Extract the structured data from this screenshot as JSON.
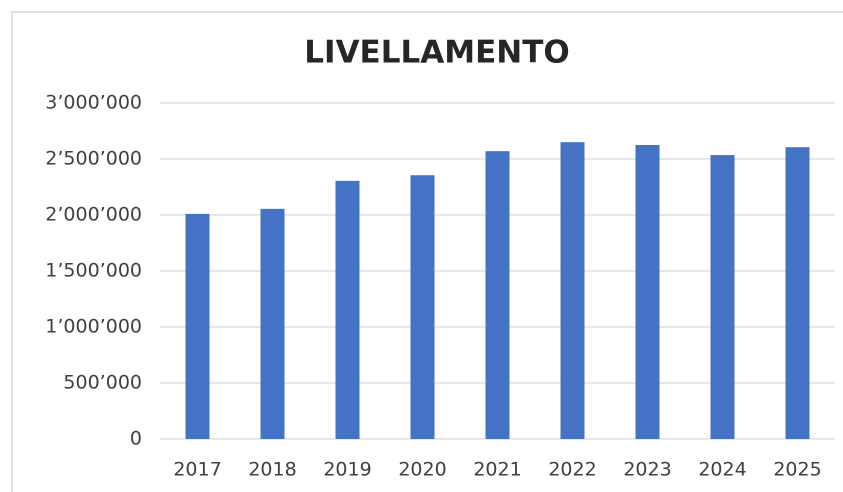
{
  "chart_data": {
    "type": "bar",
    "title": "LIVELLAMENTO",
    "categories": [
      "2017",
      "2018",
      "2019",
      "2020",
      "2021",
      "2022",
      "2023",
      "2024",
      "2025"
    ],
    "values": [
      2010000,
      2055000,
      2305000,
      2355000,
      2570000,
      2650000,
      2625000,
      2535000,
      2605000
    ],
    "color": "#4472c4",
    "ylim": [
      0,
      3000000
    ],
    "yticks": [
      0,
      {
        "value": 500000,
        "label": "500’000"
      },
      {
        "value": 1000000,
        "label": "1’000’000"
      },
      {
        "value": 1500000,
        "label": "1’500’000"
      },
      {
        "value": 2000000,
        "label": "2’000’000"
      },
      {
        "value": 2500000,
        "label": "2’500’000"
      },
      {
        "value": 3000000,
        "label": "3’000’000"
      }
    ],
    "grid": true
  }
}
